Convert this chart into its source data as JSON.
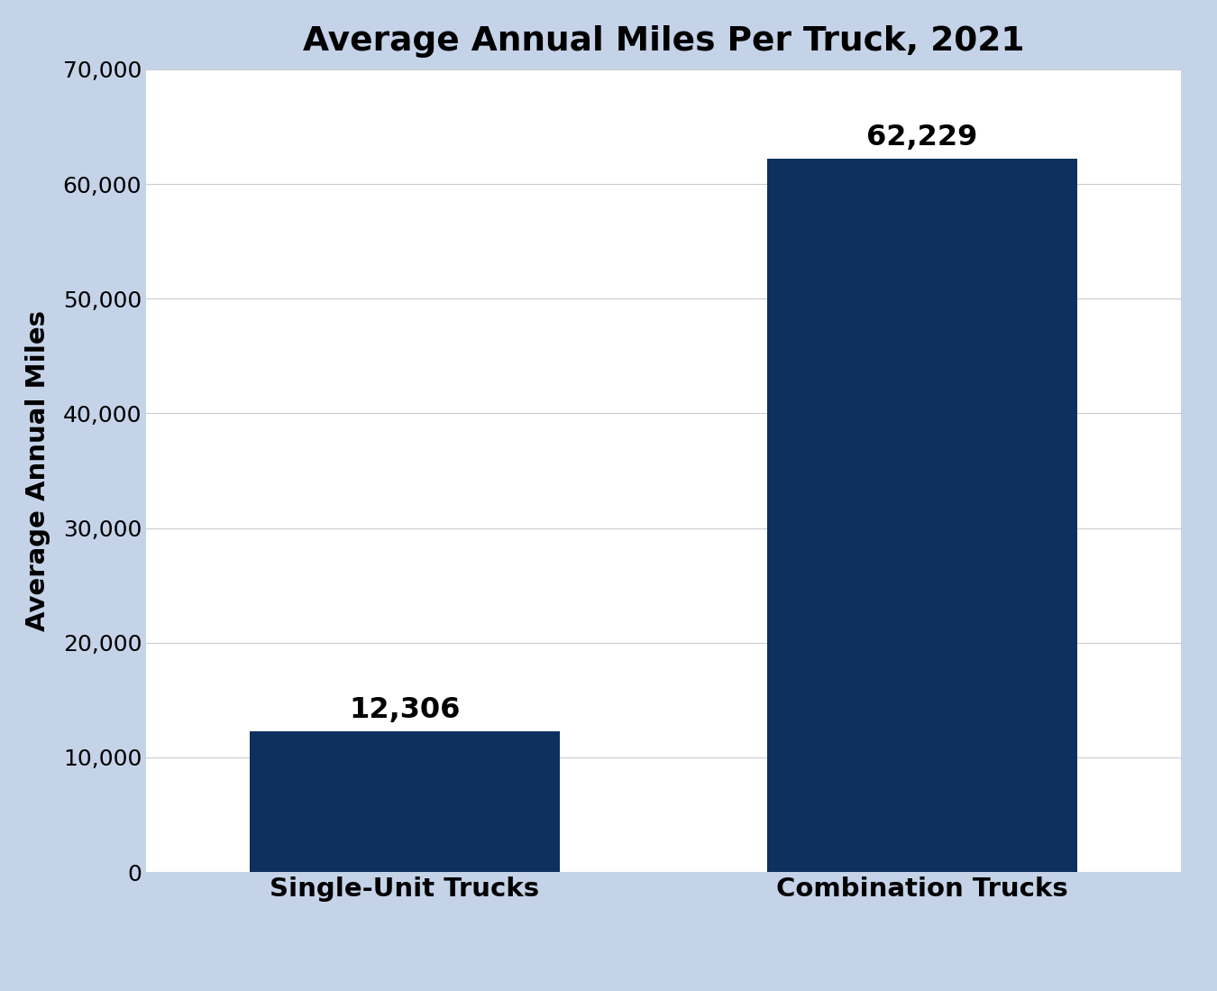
{
  "title": "Average Annual Miles Per Truck, 2021",
  "categories": [
    "Single-Unit Trucks",
    "Combination Trucks"
  ],
  "values": [
    12306,
    62229
  ],
  "bar_color": "#0D3060",
  "ylabel": "Average Annual Miles",
  "ylim": [
    0,
    70000
  ],
  "yticks": [
    0,
    10000,
    20000,
    30000,
    40000,
    50000,
    60000,
    70000
  ],
  "background_outer": "#C5D3E8",
  "background_inner": "#FFFFFF",
  "title_fontsize": 27,
  "ylabel_fontsize": 21,
  "xlabel_tick_fontsize": 21,
  "ytick_fontsize": 18,
  "annotation_fontsize": 23,
  "bar_width": 0.6,
  "x_positions": [
    0.5,
    1.5
  ],
  "xlim": [
    0,
    2
  ]
}
